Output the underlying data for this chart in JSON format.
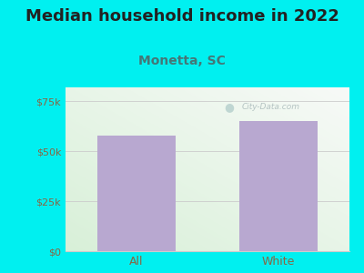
{
  "title": "Median household income in 2022",
  "subtitle": "Monetta, SC",
  "categories": [
    "All",
    "White"
  ],
  "values": [
    58000,
    65000
  ],
  "bar_color": "#b8a8d0",
  "background_color": "#00f0f0",
  "title_fontsize": 13,
  "subtitle_fontsize": 10,
  "tick_label_color": "#886644",
  "subtitle_color": "#447777",
  "title_color": "#222222",
  "ylim": [
    0,
    82000
  ],
  "yticks": [
    0,
    25000,
    50000,
    75000
  ],
  "ytick_labels": [
    "$0",
    "$25k",
    "$50k",
    "$75k"
  ],
  "watermark_text": "City-Data.com",
  "watermark_color": "#aabbbb"
}
